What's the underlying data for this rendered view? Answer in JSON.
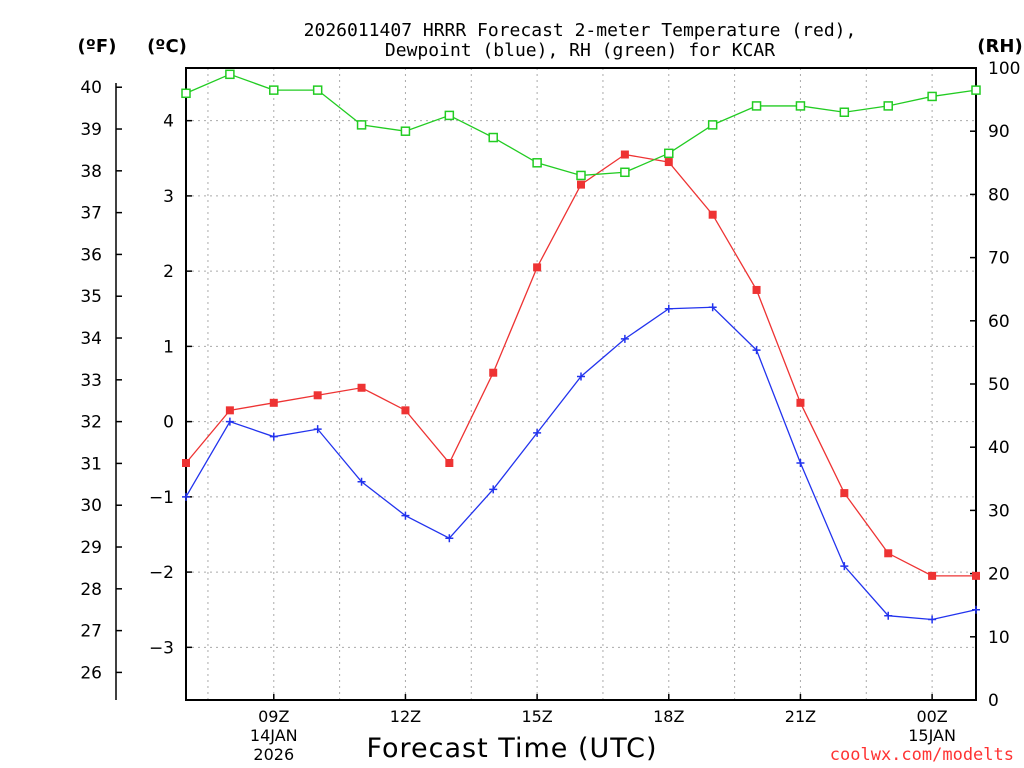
{
  "chart_data": {
    "type": "line",
    "title_lines": [
      "2026011407 HRRR Forecast 2-meter Temperature (red),",
      "Dewpoint (blue), RH (green) for KCAR"
    ],
    "xlabel": "Forecast Time (UTC)",
    "credit": "coolwx.com/modelts",
    "unit_labels": {
      "fahrenheit": "(ºF)",
      "celsius": "(ºC)",
      "rh": "(RH)"
    },
    "x_hours": [
      7,
      8,
      9,
      10,
      11,
      12,
      13,
      14,
      15,
      16,
      17,
      18,
      19,
      20,
      21,
      22,
      23,
      24,
      25
    ],
    "x_range": [
      7,
      25
    ],
    "x_ticks": [
      {
        "hour": 9,
        "label": "09Z",
        "date": "14JAN",
        "year": "2026"
      },
      {
        "hour": 12,
        "label": "12Z"
      },
      {
        "hour": 15,
        "label": "15Z"
      },
      {
        "hour": 18,
        "label": "18Z"
      },
      {
        "hour": 21,
        "label": "21Z"
      },
      {
        "hour": 24,
        "label": "00Z",
        "date": "15JAN"
      }
    ],
    "celsius_range": [
      -3.7,
      4.7
    ],
    "celsius_ticks": [
      "-3",
      "-2",
      "-1",
      "0",
      "1",
      "2",
      "3",
      "4"
    ],
    "fahrenheit_range": [
      25.34,
      40.46
    ],
    "fahrenheit_ticks": [
      "26",
      "27",
      "28",
      "29",
      "30",
      "31",
      "32",
      "33",
      "34",
      "35",
      "36",
      "37",
      "38",
      "39",
      "40"
    ],
    "rh_range": [
      0,
      100
    ],
    "rh_ticks": [
      "0",
      "10",
      "20",
      "30",
      "40",
      "50",
      "60",
      "70",
      "80",
      "90",
      "100"
    ],
    "series": [
      {
        "name": "2-meter Temperature",
        "unit": "C",
        "color": "#ee3333",
        "marker": "filled-square",
        "values": [
          -0.55,
          0.15,
          0.25,
          0.35,
          0.45,
          0.15,
          -0.55,
          0.65,
          2.05,
          3.15,
          3.55,
          3.45,
          2.75,
          1.75,
          0.25,
          -0.95,
          -1.75,
          -2.05,
          -2.05
        ]
      },
      {
        "name": "Dewpoint",
        "unit": "C",
        "color": "#2233ee",
        "marker": "plus",
        "values": [
          -1.0,
          0.0,
          -0.2,
          -0.1,
          -0.8,
          -1.25,
          -1.55,
          -0.9,
          -0.15,
          0.6,
          1.1,
          1.5,
          1.52,
          0.95,
          -0.55,
          -1.92,
          -2.58,
          -2.63,
          -2.5
        ]
      },
      {
        "name": "Relative Humidity",
        "unit": "%",
        "color": "#22cc22",
        "marker": "open-square",
        "values": [
          96,
          99,
          96.5,
          96.5,
          91,
          90,
          92.5,
          89,
          85,
          83,
          83.5,
          86.5,
          91,
          94,
          94,
          93,
          94,
          95.5,
          96.5
        ]
      }
    ]
  }
}
